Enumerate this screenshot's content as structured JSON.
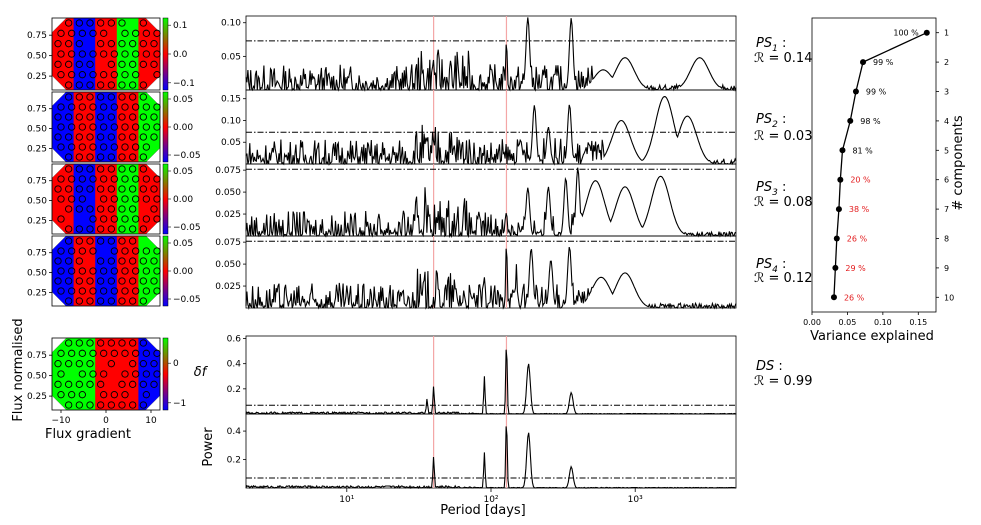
{
  "figure": {
    "left_xlabel": "Flux gradient",
    "left_ylabel": "Flux normalised",
    "cbar_label": "δf",
    "mid_xlabel": "Period [days]",
    "mid_ylabel": "Power",
    "right_xlabel": "Variance explained",
    "right_ylabel": "# components"
  },
  "colors": {
    "map_low": "#0000ff",
    "map_mid": "#ff0000",
    "map_high": "#00ff00",
    "vline": "#f4a6a6",
    "text_red": "#e31a1c"
  },
  "chart_data": [
    {
      "type": "heatmap",
      "panel": "flux-maps",
      "xlim": [
        -12,
        12
      ],
      "x_ticks": [
        "−10",
        "0",
        "10"
      ],
      "y_ticks": [
        "0.25",
        "0.50",
        "0.75"
      ],
      "maps": [
        {
          "name": "PS1",
          "cbar_ticks": [
            "0.1",
            "0.0",
            "−0.1"
          ]
        },
        {
          "name": "PS2",
          "cbar_ticks": [
            "0.05",
            "0.00",
            "−0.05"
          ]
        },
        {
          "name": "PS3",
          "cbar_ticks": [
            "0.05",
            "0.00",
            "−0.05"
          ]
        },
        {
          "name": "PS4",
          "cbar_ticks": [
            "0.05",
            "0.00",
            "−0.05"
          ]
        },
        {
          "name": "DS",
          "cbar_ticks": [
            "0",
            "−1"
          ]
        }
      ]
    },
    {
      "type": "line",
      "panel": "periodograms",
      "x_scale": "log",
      "xlim": [
        2,
        5000
      ],
      "x_ticks": [
        "10¹",
        "10²",
        "10³"
      ],
      "vlines": [
        40,
        128
      ],
      "series": [
        {
          "id": "PS1",
          "label_pre": "PS",
          "label_sub": "1",
          "r_text": "ℛ = 0.14",
          "ylim": [
            0,
            0.11
          ],
          "yticks": [
            0.05,
            0.1
          ],
          "ytick_labels": [
            "0.05",
            "0.10"
          ],
          "threshold": 0.073,
          "peaks": [
            [
              40,
              0.045
            ],
            [
              128,
              0.078
            ],
            [
              180,
              0.108
            ],
            [
              360,
              0.107
            ],
            [
              600,
              0.03
            ],
            [
              850,
              0.048
            ],
            [
              2800,
              0.048
            ]
          ]
        },
        {
          "id": "PS2",
          "label_pre": "PS",
          "label_sub": "2",
          "r_text": "ℛ = 0.03",
          "ylim": [
            0,
            0.17
          ],
          "yticks": [
            0.05,
            0.1,
            0.15
          ],
          "ytick_labels": [
            "0.05",
            "0.10",
            "0.15"
          ],
          "threshold": 0.073,
          "peaks": [
            [
              160,
              0.055
            ],
            [
              200,
              0.135
            ],
            [
              250,
              0.085
            ],
            [
              350,
              0.137
            ],
            [
              480,
              0.045
            ],
            [
              800,
              0.1
            ],
            [
              1600,
              0.155
            ],
            [
              2300,
              0.11
            ]
          ]
        },
        {
          "id": "PS3",
          "label_pre": "PS",
          "label_sub": "3",
          "r_text": "ℛ = 0.08",
          "ylim": [
            0,
            0.082
          ],
          "yticks": [
            0.025,
            0.05,
            0.075
          ],
          "ytick_labels": [
            "0.025",
            "0.050",
            "0.075"
          ],
          "threshold": 0.076,
          "peaks": [
            [
              35,
              0.058
            ],
            [
              128,
              0.03
            ],
            [
              180,
              0.055
            ],
            [
              250,
              0.056
            ],
            [
              330,
              0.066
            ],
            [
              400,
              0.078
            ],
            [
              530,
              0.063
            ],
            [
              850,
              0.056
            ],
            [
              1500,
              0.068
            ]
          ]
        },
        {
          "id": "PS4",
          "label_pre": "PS",
          "label_sub": "4",
          "r_text": "ℛ = 0.12",
          "ylim": [
            0,
            0.082
          ],
          "yticks": [
            0.025,
            0.05,
            0.075
          ],
          "ytick_labels": [
            "0.025",
            "0.050",
            "0.075"
          ],
          "threshold": 0.076,
          "peaks": [
            [
              90,
              0.035
            ],
            [
              128,
              0.078
            ],
            [
              150,
              0.05
            ],
            [
              190,
              0.068
            ],
            [
              260,
              0.055
            ],
            [
              350,
              0.07
            ],
            [
              580,
              0.035
            ],
            [
              850,
              0.04
            ]
          ]
        },
        {
          "id": "DS1",
          "label_pre": "DS",
          "label_sub": "",
          "r_text": "ℛ = 0.99",
          "ylim": [
            0,
            0.62
          ],
          "yticks": [
            0.2,
            0.4,
            0.6
          ],
          "ytick_labels": [
            "0.2",
            "0.4",
            "0.6"
          ],
          "threshold": 0.07,
          "peaks": [
            [
              36,
              0.12
            ],
            [
              40,
              0.22
            ],
            [
              90,
              0.3
            ],
            [
              128,
              0.59
            ],
            [
              182,
              0.4
            ],
            [
              360,
              0.17
            ]
          ]
        },
        {
          "id": "DS2",
          "label_pre": "",
          "label_sub": "",
          "r_text": "",
          "ylim": [
            0,
            0.52
          ],
          "yticks": [
            0.2,
            0.4
          ],
          "ytick_labels": [
            "0.2",
            "0.4"
          ],
          "threshold": 0.07,
          "peaks": [
            [
              40,
              0.22
            ],
            [
              90,
              0.25
            ],
            [
              128,
              0.5
            ],
            [
              182,
              0.39
            ],
            [
              360,
              0.15
            ]
          ]
        }
      ]
    },
    {
      "type": "line",
      "panel": "variance-explained",
      "xlim": [
        0,
        0.175
      ],
      "x_ticks": [
        0.0,
        0.05,
        0.1,
        0.15
      ],
      "x_tick_labels": [
        "0.00",
        "0.05",
        "0.10",
        "0.15"
      ],
      "ylim": [
        0.5,
        10.5
      ],
      "y_ticks": [
        "1",
        "2",
        "3",
        "4",
        "5",
        "6",
        "7",
        "8",
        "9",
        "10"
      ],
      "x": [
        0.162,
        0.072,
        0.062,
        0.054,
        0.043,
        0.04,
        0.038,
        0.035,
        0.033,
        0.031
      ],
      "y": [
        1,
        2,
        3,
        4,
        5,
        6,
        7,
        8,
        9,
        10
      ],
      "labels": [
        "100 %",
        "99 %",
        "99 %",
        "98 %",
        "81 %",
        "20 %",
        "38 %",
        "26 %",
        "29 %",
        "26 %"
      ],
      "label_red": [
        false,
        false,
        false,
        false,
        false,
        true,
        true,
        true,
        true,
        true
      ]
    }
  ]
}
